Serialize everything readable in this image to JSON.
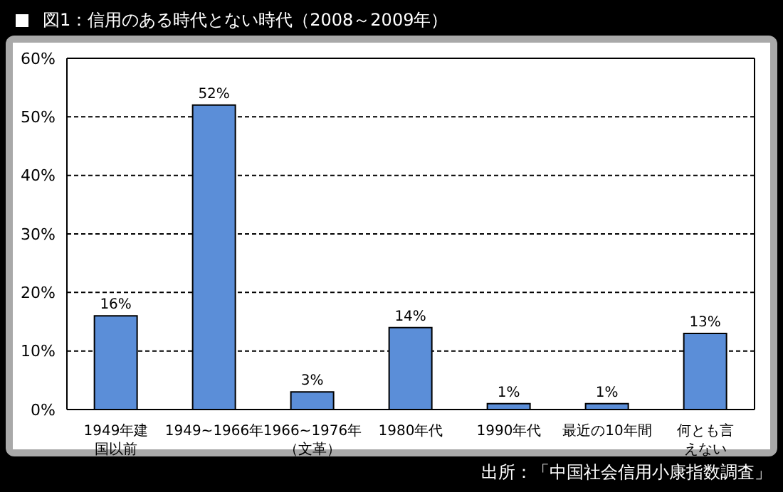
{
  "chart_data": {
    "type": "bar",
    "title": "図1：信用のある時代とない時代（2008～2009年）",
    "categories": [
      "1949年建国以前",
      "1949~1966年",
      "1966~1976年（文革）",
      "1980年代",
      "1990年代",
      "最近の10年間",
      "何とも言えない"
    ],
    "values": [
      16,
      52,
      3,
      14,
      1,
      1,
      13
    ],
    "value_labels": [
      "16%",
      "52%",
      "3%",
      "14%",
      "1%",
      "1%",
      "13%"
    ],
    "color": "#5b8ed8",
    "ylim": [
      0,
      60
    ],
    "yticks": [
      {
        "value": 0,
        "label": "0%"
      },
      {
        "value": 10,
        "label": "10%"
      },
      {
        "value": 20,
        "label": "20%"
      },
      {
        "value": 30,
        "label": "30%"
      },
      {
        "value": 40,
        "label": "40%"
      },
      {
        "value": 50,
        "label": "50%"
      },
      {
        "value": 60,
        "label": "60%"
      }
    ],
    "grid": "y",
    "annotations": [
      "出所：「中国社会信用小康指数調査」"
    ]
  }
}
